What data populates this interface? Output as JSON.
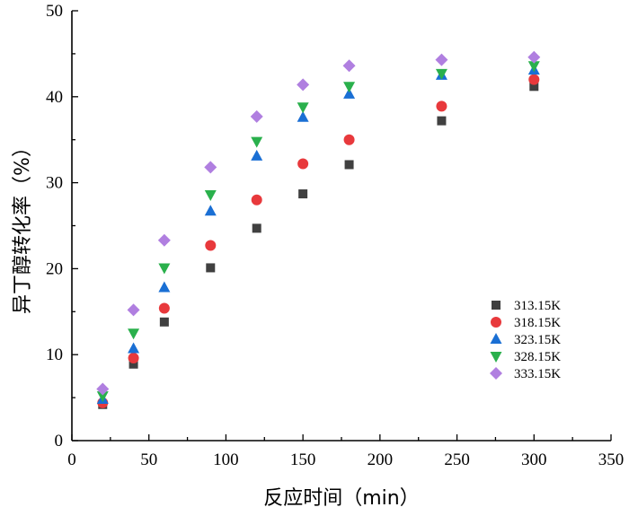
{
  "chart_data": {
    "type": "scatter",
    "xlabel": "反应时间（min）",
    "ylabel": "异丁醇转化率（%）",
    "xlim": [
      0,
      350
    ],
    "ylim": [
      0,
      50
    ],
    "x_ticks": [
      0,
      50,
      100,
      150,
      200,
      250,
      300,
      350
    ],
    "y_ticks": [
      0,
      10,
      20,
      30,
      40,
      50
    ],
    "grid": false,
    "legend_position": "right-lower",
    "series": [
      {
        "name": "313.15K",
        "marker": "square",
        "color": "#404040",
        "x": [
          20,
          40,
          60,
          90,
          120,
          150,
          180,
          240,
          300
        ],
        "y": [
          4.2,
          8.9,
          13.8,
          20.1,
          24.7,
          28.7,
          32.1,
          37.2,
          41.2
        ]
      },
      {
        "name": "318.15K",
        "marker": "circle",
        "color": "#e8393c",
        "x": [
          20,
          40,
          60,
          90,
          120,
          150,
          180,
          240,
          300
        ],
        "y": [
          4.4,
          9.6,
          15.4,
          22.7,
          28.0,
          32.2,
          35.0,
          38.9,
          42.0
        ]
      },
      {
        "name": "323.15K",
        "marker": "triangle-up",
        "color": "#1a6fd4",
        "x": [
          20,
          40,
          60,
          90,
          120,
          150,
          180,
          240,
          300
        ],
        "y": [
          4.8,
          10.7,
          17.8,
          26.7,
          33.1,
          37.6,
          40.3,
          42.5,
          43.1
        ]
      },
      {
        "name": "328.15K",
        "marker": "triangle-down",
        "color": "#2ab04c",
        "x": [
          20,
          40,
          60,
          90,
          120,
          150,
          180,
          240,
          300
        ],
        "y": [
          5.2,
          12.5,
          20.1,
          28.6,
          34.8,
          38.8,
          41.2,
          42.7,
          43.6
        ]
      },
      {
        "name": "333.15K",
        "marker": "diamond",
        "color": "#b07fe0",
        "x": [
          20,
          40,
          60,
          90,
          120,
          150,
          180,
          240,
          300
        ],
        "y": [
          6.0,
          15.2,
          23.3,
          31.8,
          37.7,
          41.4,
          43.6,
          44.3,
          44.6
        ]
      }
    ]
  }
}
